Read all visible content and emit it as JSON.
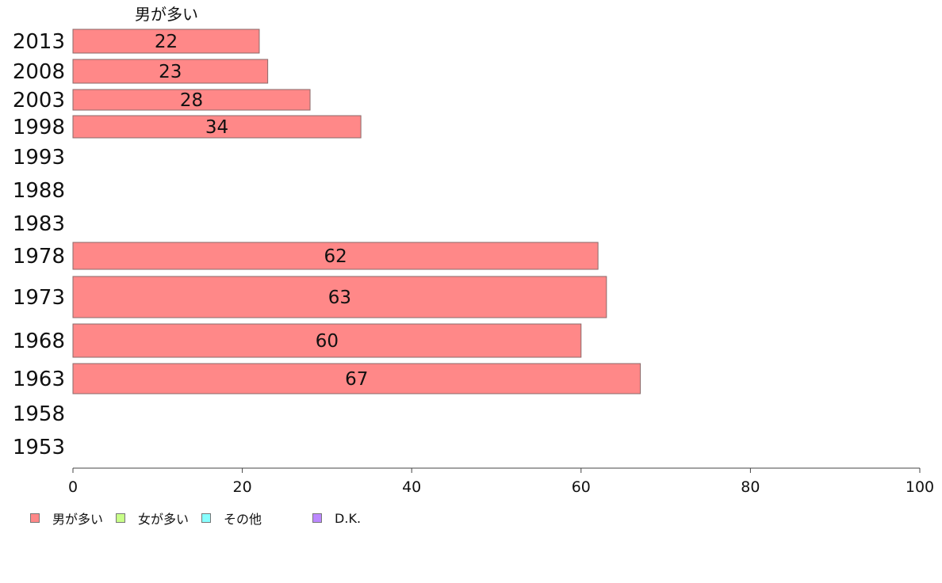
{
  "chart_data": {
    "type": "bar",
    "orientation": "horizontal",
    "stacked": true,
    "series_title": "男が多い",
    "categories": [
      "2013",
      "2008",
      "2003",
      "1998",
      "1993",
      "1988",
      "1983",
      "1978",
      "1973",
      "1968",
      "1963",
      "1958",
      "1953"
    ],
    "series": [
      {
        "name": "男が多い",
        "color": "#ff8888",
        "values": [
          22,
          23,
          28,
          34,
          null,
          null,
          null,
          62,
          63,
          60,
          67,
          null,
          null
        ]
      },
      {
        "name": "女が多い",
        "color": "#c8ff88",
        "values": [
          null,
          null,
          null,
          null,
          null,
          null,
          null,
          null,
          null,
          null,
          null,
          null,
          null
        ]
      },
      {
        "name": "その他",
        "color": "#88ffff",
        "values": [
          null,
          null,
          null,
          null,
          null,
          null,
          null,
          null,
          null,
          null,
          null,
          null,
          null
        ]
      },
      {
        "name": "D.K.",
        "color": "#bb88ff",
        "values": [
          null,
          null,
          null,
          null,
          null,
          null,
          null,
          null,
          null,
          null,
          null,
          null,
          null
        ]
      }
    ],
    "x_ticks": [
      0,
      20,
      40,
      60,
      80,
      100
    ],
    "xlim": [
      0,
      100
    ],
    "grid": false,
    "legend_position": "bottom-left"
  }
}
